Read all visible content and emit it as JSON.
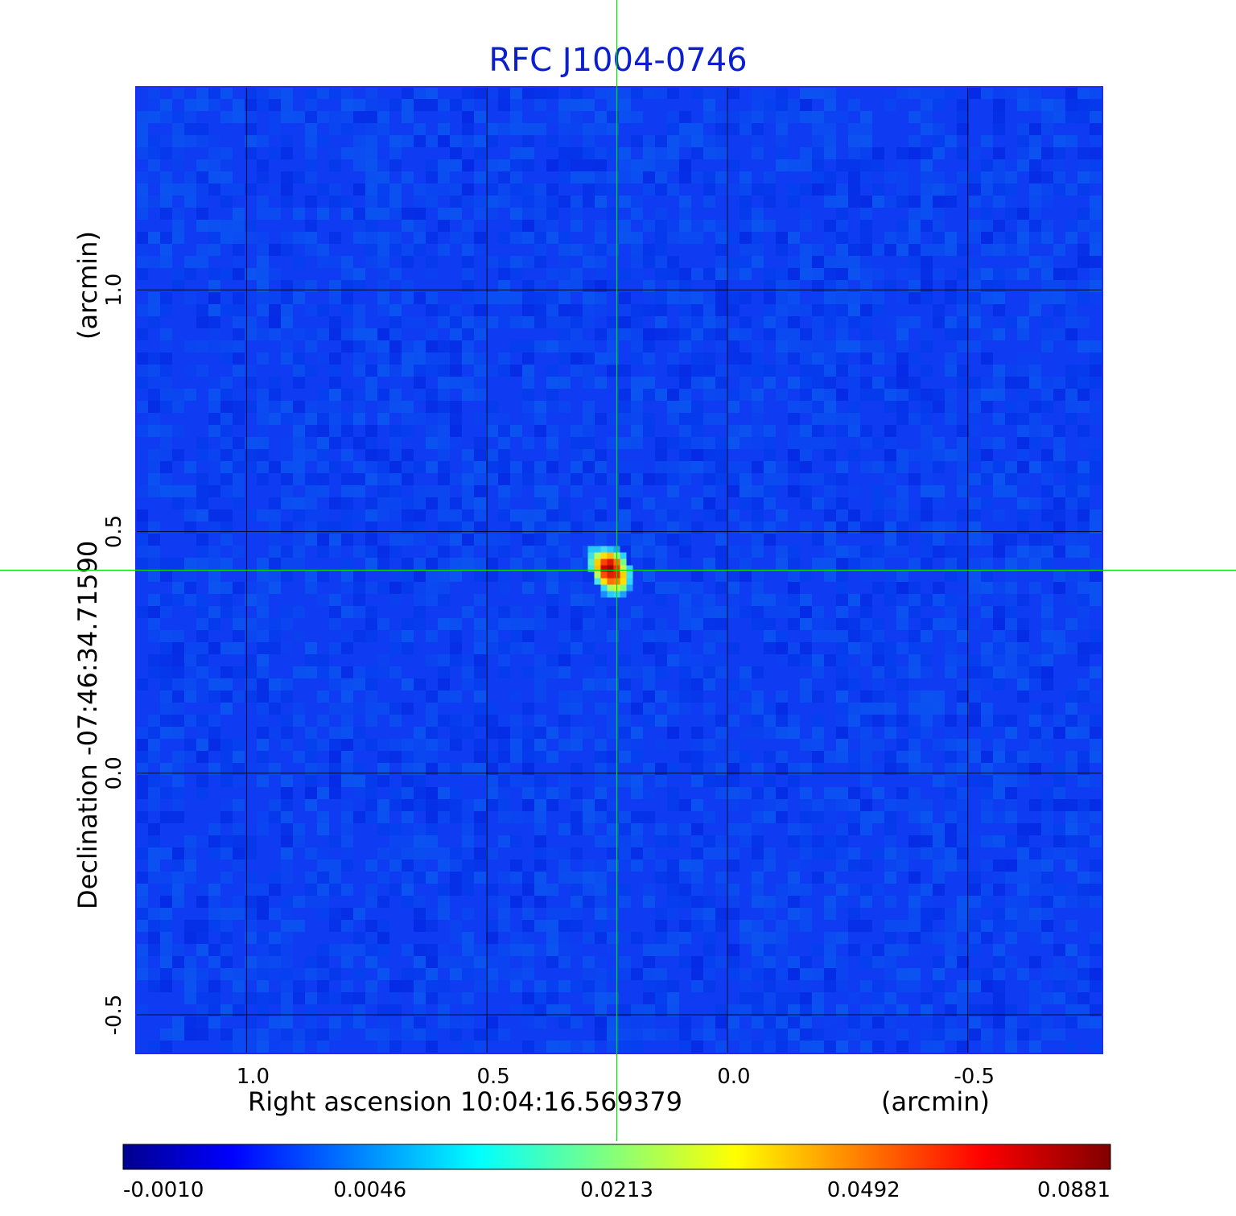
{
  "chart_data": {
    "type": "heatmap",
    "title": "RFC J1004-0746",
    "xlabel": "Right ascension  10:04:16.569379",
    "xunit": "(arcmin)",
    "ylabel": "Declination  -07:46:34.71590",
    "yunit": "(arcmin)",
    "x_ticks": [
      1.0,
      0.5,
      0.0,
      -0.5
    ],
    "x_tick_labels": [
      "1.0",
      "0.5",
      "0.0",
      "-0.5"
    ],
    "y_ticks": [
      1.0,
      0.5,
      0.0,
      -0.5
    ],
    "y_tick_labels": [
      "1.0",
      "0.5",
      "0.0",
      "-0.5"
    ],
    "xlim": [
      1.23,
      -0.78
    ],
    "ylim": [
      -0.58,
      1.42
    ],
    "x_reversed": true,
    "grid": true,
    "colormap": "jet",
    "colorbar": {
      "placement": "bottom",
      "ticks": [
        -0.001,
        0.0046,
        0.0213,
        0.0492,
        0.0881
      ],
      "tick_labels": [
        "-0.0010",
        "0.0046",
        "0.0213",
        "0.0492",
        "0.0881"
      ]
    },
    "source": {
      "x": 0.23,
      "y": 0.42,
      "peak": 0.0881
    },
    "crosshair": {
      "x": 0.23,
      "y": 0.42,
      "color": "#00e000"
    }
  }
}
